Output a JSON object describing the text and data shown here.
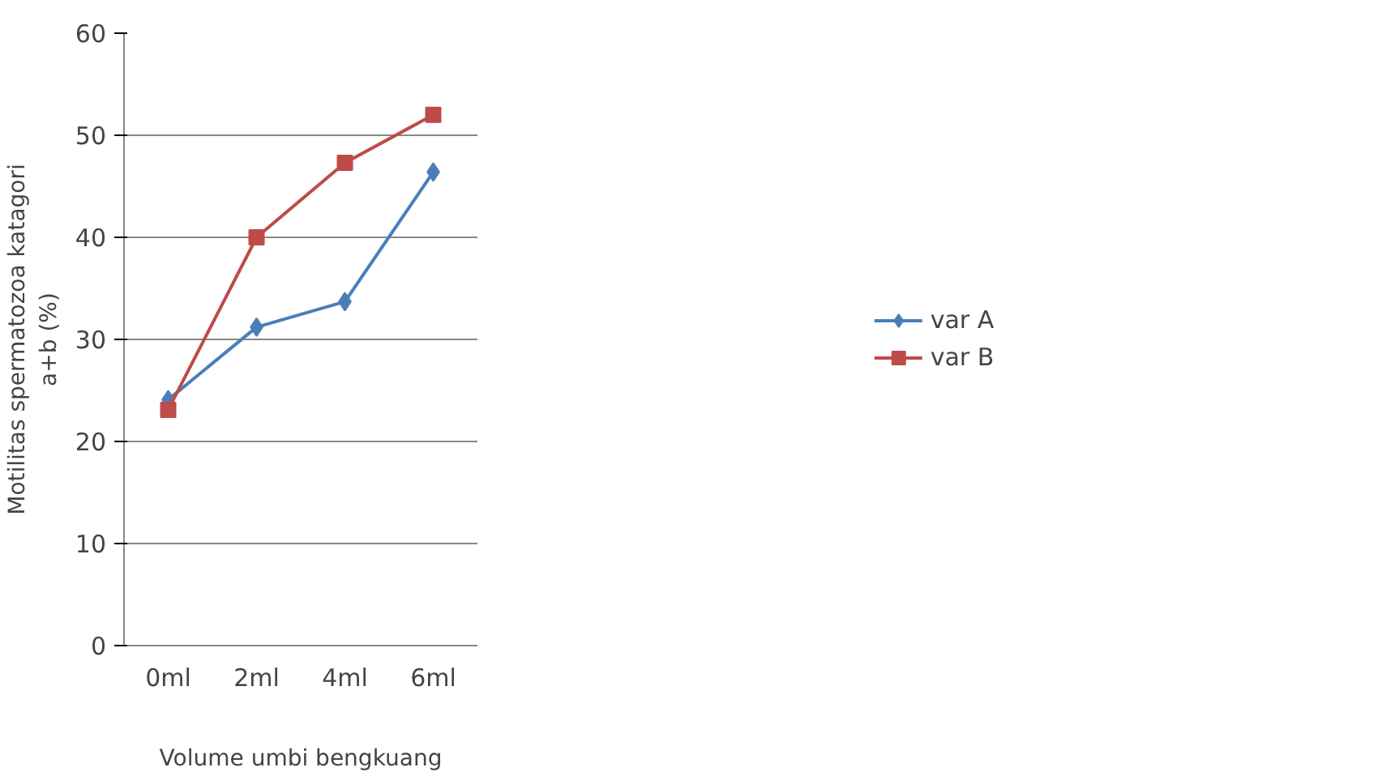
{
  "chart_data": {
    "type": "line",
    "xlabel": "Volume umbi bengkuang",
    "ylabel": "Motilitas spermatozoa katagori\na+b (%)",
    "categories": [
      "0ml",
      "2ml",
      "4ml",
      "6ml"
    ],
    "series": [
      {
        "name": "var A",
        "color": "#4a7ebb",
        "marker": "diamond",
        "values": [
          24.1,
          31.2,
          33.7,
          46.4
        ]
      },
      {
        "name": "var B",
        "color": "#be4b48",
        "marker": "square",
        "values": [
          23.1,
          40.0,
          47.3,
          52.0
        ]
      }
    ],
    "ylim": [
      0,
      60
    ],
    "yticks": [
      0,
      10,
      20,
      30,
      40,
      50,
      60
    ],
    "grid": "y",
    "legend": "right"
  }
}
